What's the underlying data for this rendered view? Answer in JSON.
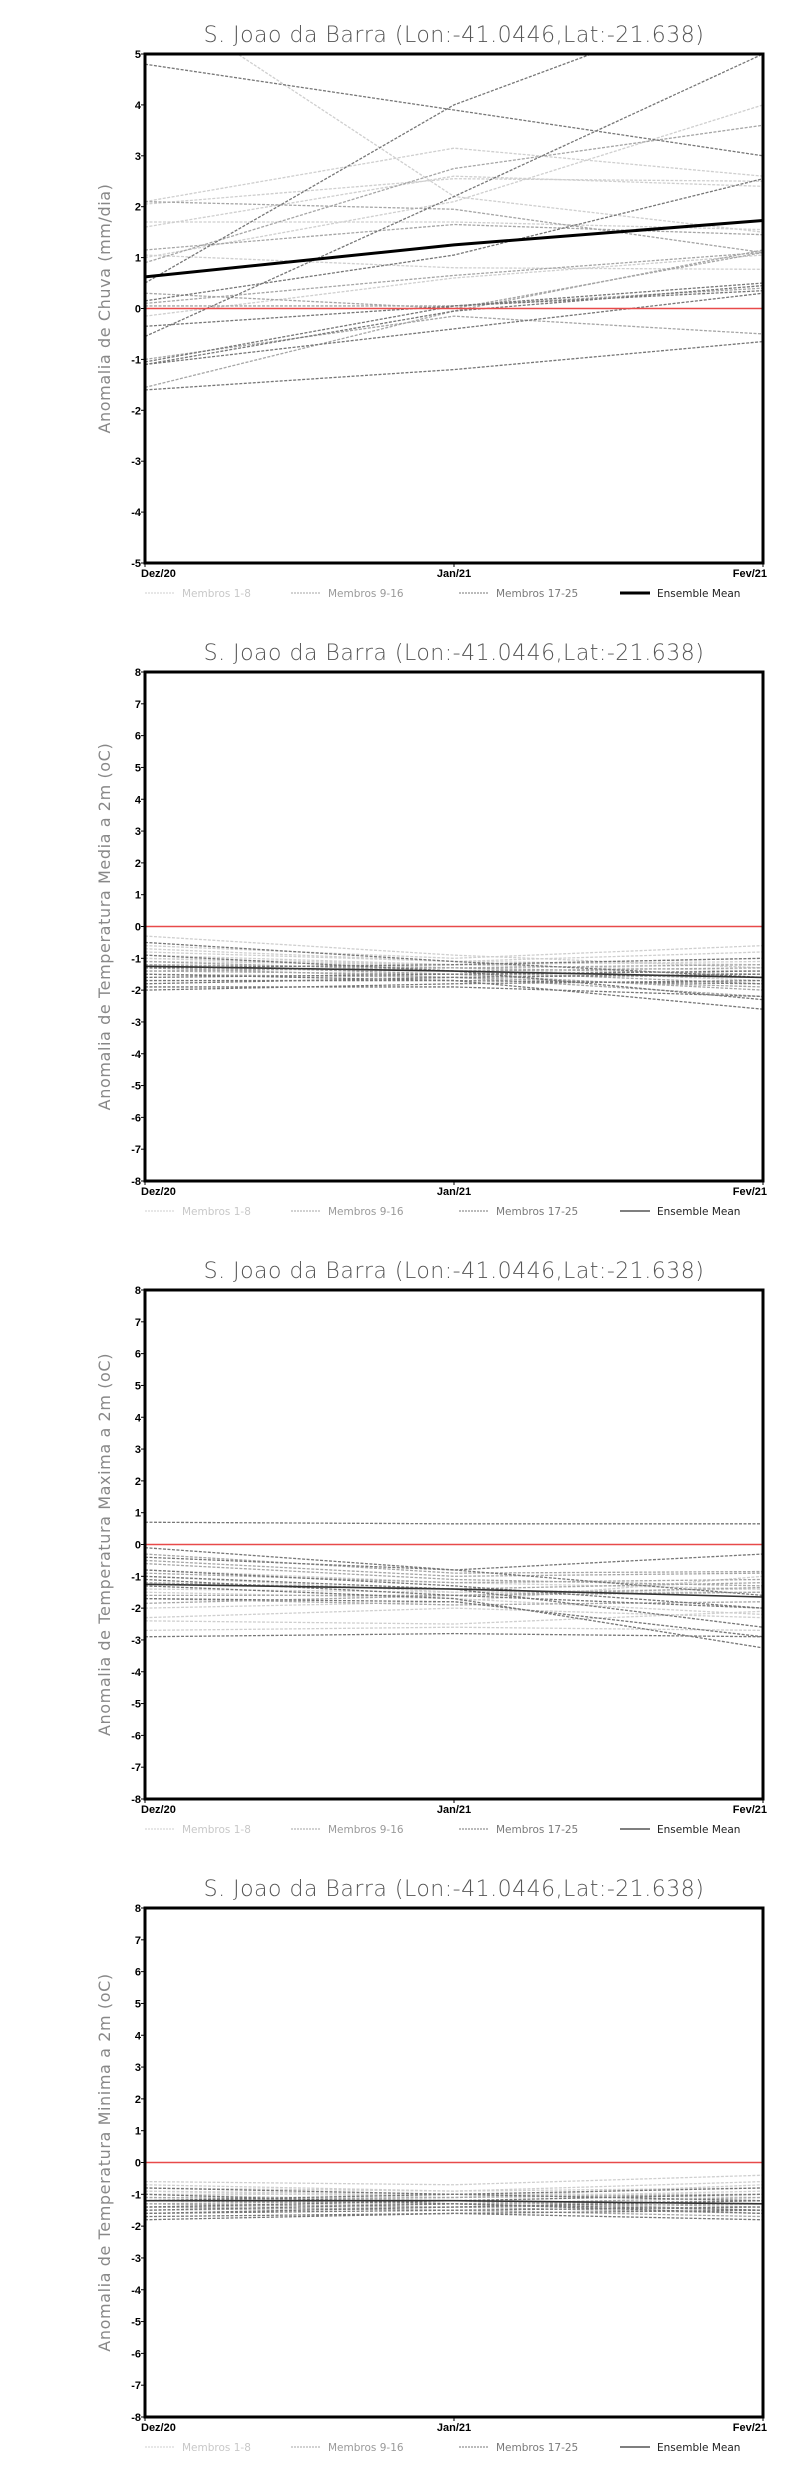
{
  "chart_data": [
    {
      "type": "line",
      "title": "S. Joao da Barra (Lon:-41.0446,Lat:-21.638)",
      "ylabel": "Anomalia de Chuva (mm/dia)",
      "xlabel": "",
      "categories": [
        "Dez/20",
        "Jan/21",
        "Fev/21"
      ],
      "ylim": [
        -5,
        5
      ],
      "yticks": [
        "-5",
        "-4",
        "-3",
        "-2",
        "-1",
        "0",
        "1",
        "2",
        "3",
        "4",
        "5"
      ],
      "grid": false,
      "reference_line": 0,
      "ensemble_mean": [
        0.62,
        1.25,
        1.73
      ],
      "members": [
        [
          6.2,
          2.2,
          1.5
        ],
        [
          1.0,
          2.1,
          4.0
        ],
        [
          2.1,
          3.15,
          2.6
        ],
        [
          1.6,
          2.6,
          2.4
        ],
        [
          1.7,
          1.7,
          1.55
        ],
        [
          2.05,
          2.55,
          2.5
        ],
        [
          1.05,
          0.8,
          0.77
        ],
        [
          -0.15,
          0.6,
          1.05
        ],
        [
          -1.0,
          -0.15,
          -0.5
        ],
        [
          0.05,
          0.05,
          0.4
        ],
        [
          0.3,
          0.0,
          1.1
        ],
        [
          -1.55,
          -0.05,
          1.15
        ],
        [
          1.15,
          1.65,
          1.45
        ],
        [
          0.9,
          2.75,
          3.6
        ],
        [
          2.1,
          1.95,
          1.1
        ],
        [
          0.1,
          0.65,
          1.1
        ],
        [
          4.8,
          3.9,
          3.0
        ],
        [
          -0.55,
          2.2,
          5.0
        ],
        [
          0.5,
          4.0,
          6.25
        ],
        [
          0.15,
          1.05,
          2.55
        ],
        [
          -0.35,
          0.05,
          0.5
        ],
        [
          -1.1,
          -0.05,
          0.45
        ],
        [
          -1.05,
          0.05,
          0.35
        ],
        [
          -1.6,
          -1.2,
          -0.65
        ],
        [
          -1.1,
          -0.4,
          0.3
        ]
      ],
      "legend": [
        "Membros 1-8",
        "Membros 9-16",
        "Membros 17-25",
        "Ensemble Mean"
      ],
      "legend_placement": "bottom"
    },
    {
      "type": "line",
      "title": "S. Joao da Barra (Lon:-41.0446,Lat:-21.638)",
      "ylabel": "Anomalia de Temperatura Media a 2m (oC)",
      "xlabel": "",
      "categories": [
        "Dez/20",
        "Jan/21",
        "Fev/21"
      ],
      "ylim": [
        -8,
        8
      ],
      "yticks": [
        "-8",
        "-7",
        "-6",
        "-5",
        "-4",
        "-3",
        "-2",
        "-1",
        "0",
        "1",
        "2",
        "3",
        "4",
        "5",
        "6",
        "7",
        "8"
      ],
      "grid": false,
      "reference_line": 0,
      "ensemble_mean": [
        -1.25,
        -1.4,
        -1.6
      ],
      "members": [
        [
          -0.3,
          -0.9,
          -1.3
        ],
        [
          -0.6,
          -1.0,
          -0.6
        ],
        [
          -0.7,
          -1.1,
          -0.8
        ],
        [
          -0.8,
          -1.1,
          -1.2
        ],
        [
          -0.9,
          -1.2,
          -1.0
        ],
        [
          -1.0,
          -1.2,
          -1.4
        ],
        [
          -1.0,
          -1.3,
          -1.7
        ],
        [
          -1.1,
          -1.2,
          -1.1
        ],
        [
          -1.1,
          -1.4,
          -1.8
        ],
        [
          -1.2,
          -1.3,
          -1.5
        ],
        [
          -1.2,
          -1.5,
          -2.0
        ],
        [
          -1.3,
          -1.4,
          -1.3
        ],
        [
          -1.3,
          -1.6,
          -2.2
        ],
        [
          -1.4,
          -1.5,
          -1.6
        ],
        [
          -1.4,
          -1.3,
          -1.2
        ],
        [
          -1.5,
          -1.6,
          -1.9
        ],
        [
          -1.5,
          -1.7,
          -2.6
        ],
        [
          -1.6,
          -1.5,
          -1.4
        ],
        [
          -1.7,
          -1.7,
          -1.8
        ],
        [
          -1.8,
          -1.6,
          -1.5
        ],
        [
          -1.9,
          -1.9,
          -2.2
        ],
        [
          -2.0,
          -1.8,
          -1.7
        ],
        [
          -0.5,
          -1.1,
          -1.6
        ],
        [
          -0.9,
          -1.4,
          -2.3
        ],
        [
          -1.3,
          -1.2,
          -1.0
        ]
      ],
      "legend": [
        "Membros 1-8",
        "Membros 9-16",
        "Membros 17-25",
        "Ensemble Mean"
      ],
      "legend_placement": "bottom"
    },
    {
      "type": "line",
      "title": "S. Joao da Barra (Lon:-41.0446,Lat:-21.638)",
      "ylabel": "Anomalia de Temperatura Maxima a 2m (oC)",
      "xlabel": "",
      "categories": [
        "Dez/20",
        "Jan/21",
        "Fev/21"
      ],
      "ylim": [
        -8,
        8
      ],
      "yticks": [
        "-8",
        "-7",
        "-6",
        "-5",
        "-4",
        "-3",
        "-2",
        "-1",
        "0",
        "1",
        "2",
        "3",
        "4",
        "5",
        "6",
        "7",
        "8"
      ],
      "grid": false,
      "reference_line": 0,
      "ensemble_mean": [
        -1.25,
        -1.4,
        -1.65
      ],
      "members": [
        [
          -2.3,
          -2.0,
          -2.3
        ],
        [
          -2.4,
          -2.5,
          -2.1
        ],
        [
          -2.7,
          -2.6,
          -2.7
        ],
        [
          -1.5,
          -1.7,
          -2.2
        ],
        [
          -1.0,
          -1.5,
          -1.5
        ],
        [
          -0.8,
          -1.2,
          -1.4
        ],
        [
          -1.4,
          -1.5,
          -1.4
        ],
        [
          -2.0,
          -1.8,
          -1.0
        ],
        [
          -0.5,
          -1.0,
          -0.9
        ],
        [
          -0.6,
          -1.1,
          -1.3
        ],
        [
          -0.9,
          -1.2,
          -1.1
        ],
        [
          -1.2,
          -1.4,
          -1.2
        ],
        [
          -1.6,
          -1.6,
          -1.5
        ],
        [
          -1.7,
          -1.9,
          -1.8
        ],
        [
          -1.85,
          -1.6,
          -1.35
        ],
        [
          -0.3,
          -0.9,
          -0.85
        ],
        [
          0.7,
          0.65,
          0.65
        ],
        [
          -0.1,
          -0.8,
          -1.6
        ],
        [
          -0.4,
          -0.8,
          -0.3
        ],
        [
          -0.8,
          -1.3,
          -2.0
        ],
        [
          -1.0,
          -1.4,
          -2.6
        ],
        [
          -1.1,
          -1.6,
          -2.0
        ],
        [
          -1.3,
          -1.7,
          -3.25
        ],
        [
          -1.7,
          -1.8,
          -2.9
        ],
        [
          -2.9,
          -2.8,
          -2.9
        ]
      ],
      "legend": [
        "Membros 1-8",
        "Membros 9-16",
        "Membros 17-25",
        "Ensemble Mean"
      ],
      "legend_placement": "bottom"
    },
    {
      "type": "line",
      "title": "S. Joao da Barra (Lon:-41.0446,Lat:-21.638)",
      "ylabel": "Anomalia de Temperatura Minima a 2m (oC)",
      "xlabel": "",
      "categories": [
        "Dez/20",
        "Jan/21",
        "Fev/21"
      ],
      "ylim": [
        -8,
        8
      ],
      "yticks": [
        "-8",
        "-7",
        "-6",
        "-5",
        "-4",
        "-3",
        "-2",
        "-1",
        "0",
        "1",
        "2",
        "3",
        "4",
        "5",
        "6",
        "7",
        "8"
      ],
      "grid": false,
      "reference_line": 0,
      "ensemble_mean": [
        -1.2,
        -1.2,
        -1.3
      ],
      "members": [
        [
          -0.6,
          -0.7,
          -0.4
        ],
        [
          -0.7,
          -0.9,
          -0.6
        ],
        [
          -0.8,
          -0.9,
          -0.8
        ],
        [
          -0.9,
          -1.0,
          -1.0
        ],
        [
          -0.9,
          -1.1,
          -0.7
        ],
        [
          -1.0,
          -1.0,
          -1.1
        ],
        [
          -1.0,
          -1.2,
          -1.3
        ],
        [
          -1.1,
          -1.1,
          -0.9
        ],
        [
          -1.1,
          -1.2,
          -1.5
        ],
        [
          -1.2,
          -1.3,
          -1.2
        ],
        [
          -1.2,
          -1.1,
          -1.0
        ],
        [
          -1.3,
          -1.4,
          -1.6
        ],
        [
          -1.3,
          -1.2,
          -1.4
        ],
        [
          -1.4,
          -1.3,
          -1.1
        ],
        [
          -1.4,
          -1.5,
          -1.7
        ],
        [
          -1.5,
          -1.4,
          -1.3
        ],
        [
          -1.5,
          -1.3,
          -1.5
        ],
        [
          -1.6,
          -1.5,
          -1.4
        ],
        [
          -1.7,
          -1.6,
          -1.8
        ],
        [
          -1.8,
          -1.6,
          -1.5
        ],
        [
          -0.8,
          -1.0,
          -1.2
        ],
        [
          -1.0,
          -1.3,
          -1.6
        ],
        [
          -1.2,
          -1.0,
          -0.8
        ],
        [
          -1.4,
          -1.2,
          -1.0
        ],
        [
          -1.6,
          -1.4,
          -1.2
        ]
      ],
      "legend": [
        "Membros 1-8",
        "Membros 9-16",
        "Membros 17-25",
        "Ensemble Mean"
      ],
      "legend_placement": "bottom"
    }
  ],
  "colors": {
    "members_1_8": "#cfcfcf",
    "members_9_16": "#a6a6a6",
    "members_17_25": "#777777",
    "ensemble_mean": "#000000",
    "zero_line": "#e84a4a",
    "legend_text_1_8": "#c8c8c8",
    "legend_text_9_16": "#9a9a9a",
    "legend_text_17_25": "#7a7a7a",
    "legend_text_mean": "#222222"
  }
}
